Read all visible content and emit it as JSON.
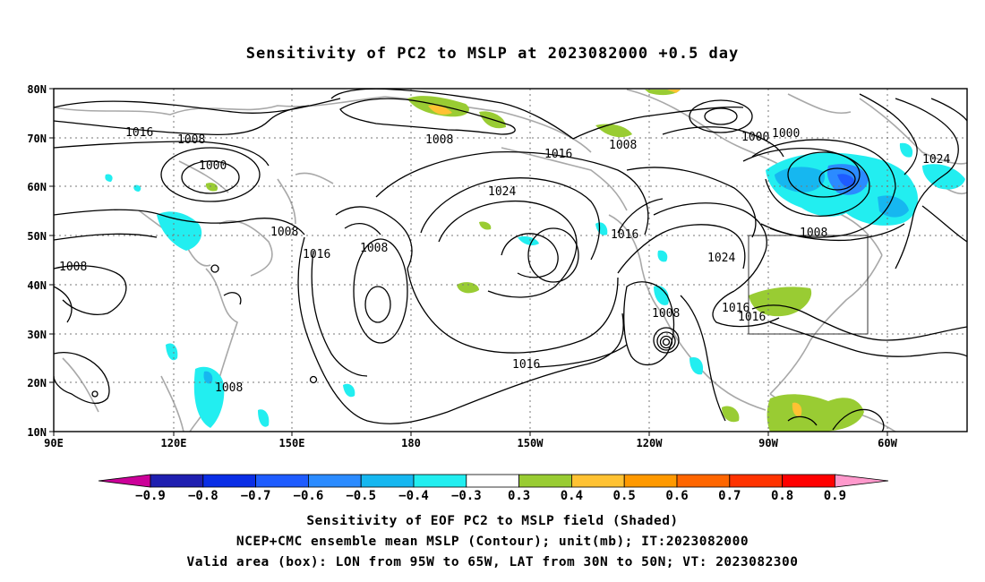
{
  "title": "Sensitivity of PC2 to MSLP at 2023082000 +0.5 day",
  "map": {
    "lat_ticks": [
      "80N",
      "70N",
      "60N",
      "50N",
      "40N",
      "30N",
      "20N",
      "10N"
    ],
    "lon_ticks": [
      "90E",
      "120E",
      "150E",
      "180",
      "150W",
      "120W",
      "90W",
      "60W"
    ],
    "contour_labels": [
      "1016",
      "1008",
      "1000",
      "1008",
      "1008",
      "1008",
      "1016",
      "1008",
      "1024",
      "1016",
      "1008",
      "1016",
      "1000",
      "1000",
      "1024",
      "1008",
      "1024",
      "1016",
      "1016",
      "1008",
      "1016",
      "1008"
    ],
    "valid_box": {
      "lon_from": "95W",
      "lon_to": "65W",
      "lat_from": "30N",
      "lat_to": "50N"
    }
  },
  "colorbar": {
    "labels": [
      "-0.9",
      "-0.8",
      "-0.7",
      "-0.6",
      "-0.5",
      "-0.4",
      "-0.3",
      "0.3",
      "0.4",
      "0.5",
      "0.6",
      "0.7",
      "0.8",
      "0.9"
    ],
    "colors": [
      "#1f1fb0",
      "#0a2ee6",
      "#1e5cff",
      "#2b8bff",
      "#16b7f0",
      "#22eef0",
      "#ffffff",
      "#99cc33",
      "#ffc233",
      "#ff9900",
      "#ff6600",
      "#ff3300",
      "#ff0000"
    ],
    "end_low": "#cc0099",
    "end_high": "#ff99cc"
  },
  "captions": [
    "Sensitivity of EOF PC2 to MSLP field (Shaded)",
    "NCEP+CMC ensemble mean MSLP (Contour); unit(mb); IT:2023082000",
    "Valid area (box): LON from 95W to 65W, LAT from 30N to 50N; VT: 2023082300"
  ]
}
